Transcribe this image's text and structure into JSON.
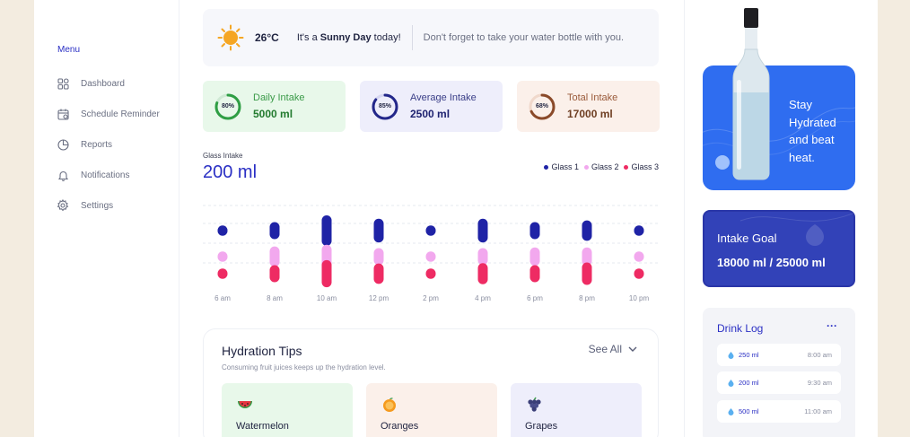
{
  "sidebar": {
    "menu_label": "Menu",
    "items": [
      {
        "label": "Dashboard",
        "icon": "grid-icon"
      },
      {
        "label": "Schedule Reminder",
        "icon": "calendar-icon"
      },
      {
        "label": "Reports",
        "icon": "pie-chart-icon"
      },
      {
        "label": "Notifications",
        "icon": "bell-icon"
      },
      {
        "label": "Settings",
        "icon": "gear-icon"
      }
    ]
  },
  "weather": {
    "temperature": "26°C",
    "message_prefix": "It's a ",
    "message_bold": "Sunny Day",
    "message_suffix": " today!",
    "reminder": "Don't forget to take your water bottle with you."
  },
  "stats": [
    {
      "label": "Daily Intake",
      "value": "5000 ml",
      "percent": 80,
      "percent_label": "80%",
      "color": "#2f9e44"
    },
    {
      "label": "Average Intake",
      "value": "2500 ml",
      "percent": 85,
      "percent_label": "85%",
      "color": "#23278a"
    },
    {
      "label": "Total Intake",
      "value": "17000 ml",
      "percent": 68,
      "percent_label": "68%",
      "color": "#8a4a2a"
    }
  ],
  "glass_intake": {
    "label": "Glass Intake",
    "value": "200 ml"
  },
  "chart_data": {
    "type": "bar",
    "categories": [
      "6 am",
      "8 am",
      "10 am",
      "12 pm",
      "2 pm",
      "4 pm",
      "6 pm",
      "8 pm",
      "10 pm"
    ],
    "series": [
      {
        "name": "Glass 1",
        "color": "#1f23a6",
        "values": [
          1,
          2,
          4,
          3,
          1,
          3,
          2,
          2.5,
          1
        ]
      },
      {
        "name": "Glass 2",
        "color": "#f2a8ee",
        "values": [
          1,
          2.5,
          3,
          2,
          1,
          2,
          2.2,
          2.2,
          1
        ]
      },
      {
        "name": "Glass 3",
        "color": "#ee2b63",
        "values": [
          1,
          2,
          3.5,
          2.5,
          1,
          2.6,
          2,
          2.8,
          1
        ]
      }
    ]
  },
  "tips": {
    "title": "Hydration Tips",
    "subtitle": "Consuming fruit juices keeps up the hydration level.",
    "see_all": "See All",
    "fruits": [
      {
        "name": "Watermelon",
        "icon": "watermelon-icon"
      },
      {
        "name": "Oranges",
        "icon": "orange-icon"
      },
      {
        "name": "Grapes",
        "icon": "grapes-icon"
      }
    ]
  },
  "promo": {
    "text_lines": [
      "Stay",
      "Hydrated",
      "and beat",
      "heat."
    ]
  },
  "goal": {
    "title": "Intake Goal",
    "value": "18000 ml / 25000 ml"
  },
  "drink_log": {
    "title": "Drink Log",
    "more": "···",
    "entries": [
      {
        "amount": "250 ml",
        "time": "8:00 am"
      },
      {
        "amount": "200 ml",
        "time": "9:30 am"
      },
      {
        "amount": "500 ml",
        "time": "11:00 am"
      }
    ]
  }
}
